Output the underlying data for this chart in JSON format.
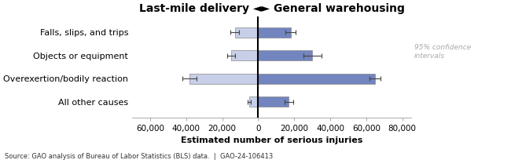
{
  "title_part1": "Last-mile delivery ",
  "title_arrows": "◄►",
  "title_part2": " General warehousing",
  "categories": [
    "Falls, slips, and trips",
    "Objects or equipment",
    "Overexertion/bodily reaction",
    "All other causes"
  ],
  "lmd_values": [
    -13000,
    -15000,
    -38000,
    -5000
  ],
  "gw_values": [
    18000,
    30000,
    65000,
    17000
  ],
  "lmd_errors": [
    2500,
    2000,
    4000,
    1000
  ],
  "gw_errors": [
    3000,
    5000,
    3000,
    2500
  ],
  "lmd_color": "#c8cfe8",
  "gw_color": "#7285bf",
  "bar_edge_color": "#888888",
  "xlabel": "Estimated number of serious injuries",
  "xlim": [
    -70000,
    85000
  ],
  "xticks": [
    -60000,
    -40000,
    -20000,
    0,
    20000,
    40000,
    60000,
    80000
  ],
  "xticklabels": [
    "60,000",
    "40,000",
    "20,000",
    "0",
    "20,000",
    "40,000",
    "60,000",
    "80,000"
  ],
  "ci_label": "95% confidence\nintervals",
  "ci_label_color": "#aaaaaa",
  "source_text": "Source: GAO analysis of Bureau of Labor Statistics (BLS) data.  |  GAO-24-106413",
  "background_color": "#ffffff",
  "title_fontsize": 10,
  "axis_fontsize": 8,
  "tick_fontsize": 7.5,
  "bar_height": 0.45
}
